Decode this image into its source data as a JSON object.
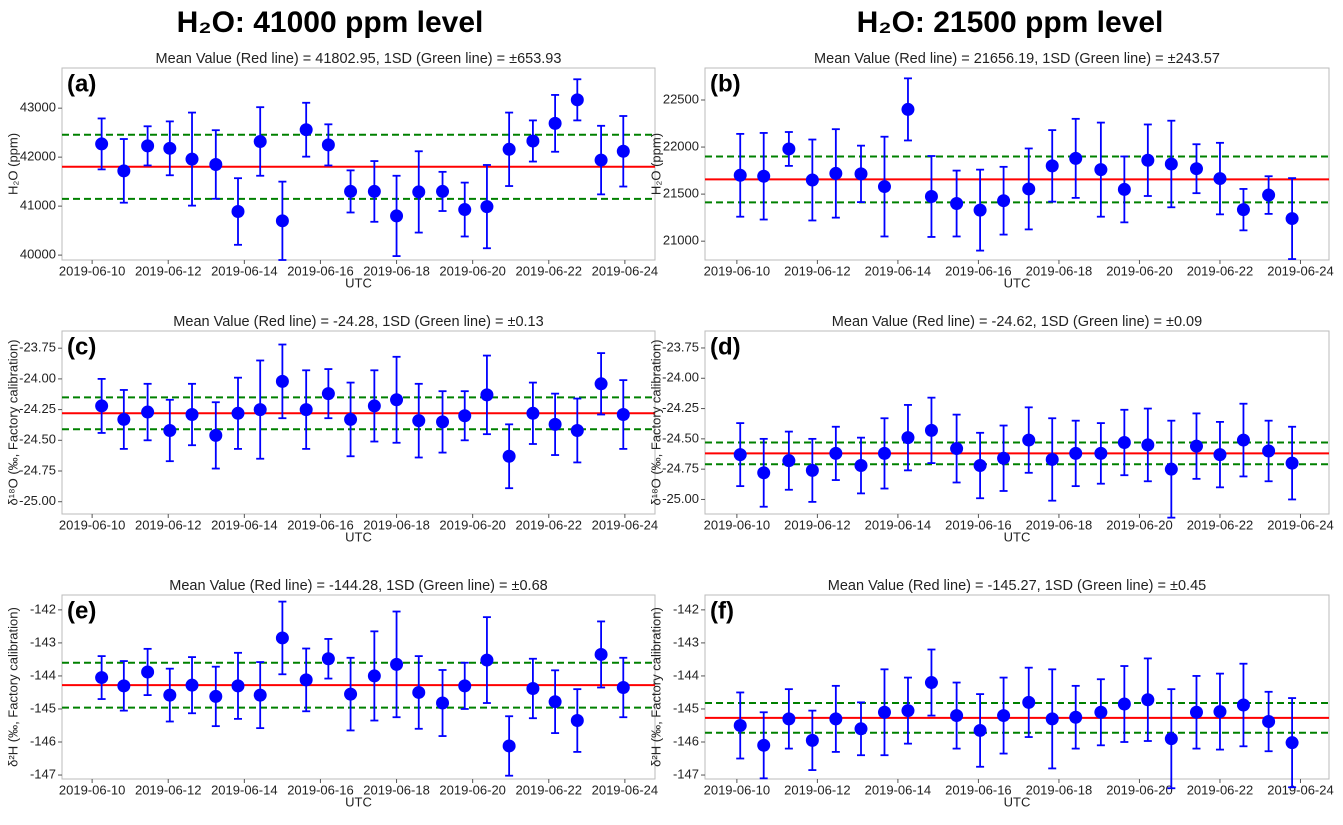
{
  "column_titles": [
    "H₂O: 41000 ppm level",
    "H₂O: 21500 ppm level"
  ],
  "chart_data": [
    {
      "type": "errorbar_scatter",
      "panel_label": "(a)",
      "title": "Mean Value (Red line) = 41802.95, 1SD (Green line) = ±653.93",
      "ylabel": "H₂O (ppm)",
      "xlabel": "UTC",
      "x": [
        "2019-06-10T06:00",
        "2019-06-10T20:00",
        "2019-06-11T11:00",
        "2019-06-12T01:00",
        "2019-06-12T15:00",
        "2019-06-13T06:00",
        "2019-06-13T20:00",
        "2019-06-14T10:00",
        "2019-06-15T00:00",
        "2019-06-15T15:00",
        "2019-06-16T05:00",
        "2019-06-16T19:00",
        "2019-06-17T10:00",
        "2019-06-18T00:00",
        "2019-06-18T14:00",
        "2019-06-19T05:00",
        "2019-06-19T19:00",
        "2019-06-20T09:00",
        "2019-06-20T23:00",
        "2019-06-21T14:00",
        "2019-06-22T04:00",
        "2019-06-22T18:00",
        "2019-06-23T09:00",
        "2019-06-23T23:00"
      ],
      "values": [
        42270,
        41720,
        42230,
        42180,
        41960,
        41850,
        40890,
        42320,
        40700,
        42560,
        42250,
        41300,
        41300,
        40800,
        41290,
        41300,
        40930,
        40990,
        42160,
        42330,
        42690,
        43170,
        41940,
        42120
      ],
      "errors": [
        520,
        650,
        400,
        550,
        950,
        700,
        680,
        700,
        800,
        550,
        420,
        430,
        620,
        820,
        830,
        400,
        550,
        850,
        750,
        420,
        580,
        420,
        700,
        720
      ],
      "mean": 41802.95,
      "sd": 653.93,
      "xlim": [
        "2019-06-09T05:00",
        "2019-06-24T19:00"
      ],
      "xticks": [
        "2019-06-10",
        "2019-06-12",
        "2019-06-14",
        "2019-06-16",
        "2019-06-18",
        "2019-06-20",
        "2019-06-22",
        "2019-06-24"
      ],
      "ylim": [
        39900,
        43820
      ],
      "yticks": [
        40000,
        41000,
        42000,
        43000
      ],
      "color": "#0000ff",
      "mean_color": "#ff0000",
      "sd_color": "#008000"
    },
    {
      "type": "errorbar_scatter",
      "panel_label": "(b)",
      "title": "Mean Value (Red line) = 21656.19, 1SD (Green line) = ±243.57",
      "ylabel": "H₂O (ppm)",
      "xlabel": "UTC",
      "x": [
        "2019-06-10T02:00",
        "2019-06-10T16:00",
        "2019-06-11T07:00",
        "2019-06-11T21:00",
        "2019-06-12T11:00",
        "2019-06-13T02:00",
        "2019-06-13T16:00",
        "2019-06-14T06:00",
        "2019-06-14T20:00",
        "2019-06-15T11:00",
        "2019-06-16T01:00",
        "2019-06-16T15:00",
        "2019-06-17T06:00",
        "2019-06-17T20:00",
        "2019-06-18T10:00",
        "2019-06-19T01:00",
        "2019-06-19T15:00",
        "2019-06-20T05:00",
        "2019-06-20T19:00",
        "2019-06-21T10:00",
        "2019-06-22T00:00",
        "2019-06-22T14:00",
        "2019-06-23T05:00",
        "2019-06-23T19:00"
      ],
      "values": [
        21700,
        21690,
        21980,
        21650,
        21720,
        21715,
        21580,
        22400,
        21475,
        21400,
        21330,
        21430,
        21555,
        21800,
        21880,
        21760,
        21550,
        21860,
        21820,
        21770,
        21665,
        21335,
        21490,
        21240
      ],
      "errors": [
        440,
        460,
        180,
        430,
        470,
        300,
        530,
        330,
        430,
        350,
        430,
        360,
        430,
        380,
        420,
        500,
        350,
        380,
        460,
        260,
        380,
        220,
        200,
        430
      ],
      "mean": 21656.19,
      "sd": 243.57,
      "xlim": [
        "2019-06-09T05:00",
        "2019-06-24T17:00"
      ],
      "xticks": [
        "2019-06-10",
        "2019-06-12",
        "2019-06-14",
        "2019-06-16",
        "2019-06-18",
        "2019-06-20",
        "2019-06-22",
        "2019-06-24"
      ],
      "ylim": [
        20800,
        22840
      ],
      "yticks": [
        21000,
        21500,
        22000,
        22500
      ],
      "color": "#0000ff",
      "mean_color": "#ff0000",
      "sd_color": "#008000"
    },
    {
      "type": "errorbar_scatter",
      "panel_label": "(c)",
      "title": "Mean Value (Red line) = -24.28, 1SD (Green line) = ±0.13",
      "ylabel": "δ¹⁸O (‰, Factory calibration)",
      "xlabel": "UTC",
      "x": [
        "2019-06-10T06:00",
        "2019-06-10T20:00",
        "2019-06-11T11:00",
        "2019-06-12T01:00",
        "2019-06-12T15:00",
        "2019-06-13T06:00",
        "2019-06-13T20:00",
        "2019-06-14T10:00",
        "2019-06-15T00:00",
        "2019-06-15T15:00",
        "2019-06-16T05:00",
        "2019-06-16T19:00",
        "2019-06-17T10:00",
        "2019-06-18T00:00",
        "2019-06-18T14:00",
        "2019-06-19T05:00",
        "2019-06-19T19:00",
        "2019-06-20T09:00",
        "2019-06-20T23:00",
        "2019-06-21T14:00",
        "2019-06-22T04:00",
        "2019-06-22T18:00",
        "2019-06-23T09:00",
        "2019-06-23T23:00"
      ],
      "values": [
        -24.22,
        -24.33,
        -24.27,
        -24.42,
        -24.29,
        -24.46,
        -24.28,
        -24.25,
        -24.02,
        -24.25,
        -24.12,
        -24.33,
        -24.22,
        -24.17,
        -24.34,
        -24.35,
        -24.3,
        -24.13,
        -24.63,
        -24.28,
        -24.37,
        -24.42,
        -24.04,
        -24.29
      ],
      "errors": [
        0.22,
        0.24,
        0.23,
        0.25,
        0.25,
        0.27,
        0.29,
        0.4,
        0.3,
        0.32,
        0.2,
        0.3,
        0.29,
        0.35,
        0.3,
        0.25,
        0.2,
        0.32,
        0.26,
        0.25,
        0.25,
        0.26,
        0.25,
        0.28
      ],
      "mean": -24.28,
      "sd": 0.13,
      "xlim": [
        "2019-06-09T05:00",
        "2019-06-24T19:00"
      ],
      "xticks": [
        "2019-06-10",
        "2019-06-12",
        "2019-06-14",
        "2019-06-16",
        "2019-06-18",
        "2019-06-20",
        "2019-06-22",
        "2019-06-24"
      ],
      "ylim": [
        -25.1,
        -23.61
      ],
      "yticks": [
        {
          "value": -25,
          "label": "-25.00"
        },
        -24.75,
        {
          "value": -24.5,
          "label": "-24.50"
        },
        -24.25,
        {
          "value": -24,
          "label": "-24.00"
        },
        -23.75
      ],
      "color": "#0000ff",
      "mean_color": "#ff0000",
      "sd_color": "#008000"
    },
    {
      "type": "errorbar_scatter",
      "panel_label": "(d)",
      "title": "Mean Value (Red line) = -24.62, 1SD (Green line) = ±0.09",
      "ylabel": "δ¹⁸O (‰, Factory calibration)",
      "xlabel": "UTC",
      "x": [
        "2019-06-10T02:00",
        "2019-06-10T16:00",
        "2019-06-11T07:00",
        "2019-06-11T21:00",
        "2019-06-12T11:00",
        "2019-06-13T02:00",
        "2019-06-13T16:00",
        "2019-06-14T06:00",
        "2019-06-14T20:00",
        "2019-06-15T11:00",
        "2019-06-16T01:00",
        "2019-06-16T15:00",
        "2019-06-17T06:00",
        "2019-06-17T20:00",
        "2019-06-18T10:00",
        "2019-06-19T01:00",
        "2019-06-19T15:00",
        "2019-06-20T05:00",
        "2019-06-20T19:00",
        "2019-06-21T10:00",
        "2019-06-22T00:00",
        "2019-06-22T14:00",
        "2019-06-23T05:00",
        "2019-06-23T19:00"
      ],
      "values": [
        -24.63,
        -24.78,
        -24.68,
        -24.76,
        -24.62,
        -24.72,
        -24.62,
        -24.49,
        -24.43,
        -24.58,
        -24.72,
        -24.66,
        -24.51,
        -24.67,
        -24.62,
        -24.62,
        -24.53,
        -24.55,
        -24.75,
        -24.56,
        -24.63,
        -24.51,
        -24.6,
        -24.7
      ],
      "errors": [
        0.26,
        0.28,
        0.24,
        0.26,
        0.22,
        0.23,
        0.29,
        0.27,
        0.27,
        0.28,
        0.27,
        0.27,
        0.27,
        0.34,
        0.27,
        0.25,
        0.27,
        0.3,
        0.4,
        0.27,
        0.27,
        0.3,
        0.25,
        0.3
      ],
      "mean": -24.62,
      "sd": 0.09,
      "xlim": [
        "2019-06-09T05:00",
        "2019-06-24T17:00"
      ],
      "xticks": [
        "2019-06-10",
        "2019-06-12",
        "2019-06-14",
        "2019-06-16",
        "2019-06-18",
        "2019-06-20",
        "2019-06-22",
        "2019-06-24"
      ],
      "ylim": [
        -25.12,
        -23.61
      ],
      "yticks": [
        {
          "value": -25,
          "label": "-25.00"
        },
        -24.75,
        {
          "value": -24.5,
          "label": "-24.50"
        },
        -24.25,
        {
          "value": -24,
          "label": "-24.00"
        },
        -23.75
      ],
      "color": "#0000ff",
      "mean_color": "#ff0000",
      "sd_color": "#008000"
    },
    {
      "type": "errorbar_scatter",
      "panel_label": "(e)",
      "title": "Mean Value (Red line) = -144.28, 1SD (Green line) = ±0.68",
      "ylabel": "δ²H (‰, Factory calibration)",
      "xlabel": "UTC",
      "x": [
        "2019-06-10T06:00",
        "2019-06-10T20:00",
        "2019-06-11T11:00",
        "2019-06-12T01:00",
        "2019-06-12T15:00",
        "2019-06-13T06:00",
        "2019-06-13T20:00",
        "2019-06-14T10:00",
        "2019-06-15T00:00",
        "2019-06-15T15:00",
        "2019-06-16T05:00",
        "2019-06-16T19:00",
        "2019-06-17T10:00",
        "2019-06-18T00:00",
        "2019-06-18T14:00",
        "2019-06-19T05:00",
        "2019-06-19T19:00",
        "2019-06-20T09:00",
        "2019-06-20T23:00",
        "2019-06-21T14:00",
        "2019-06-22T04:00",
        "2019-06-22T18:00",
        "2019-06-23T09:00",
        "2019-06-23T23:00"
      ],
      "values": [
        -144.05,
        -144.3,
        -143.88,
        -144.58,
        -144.28,
        -144.62,
        -144.3,
        -144.58,
        -142.85,
        -144.12,
        -143.48,
        -144.55,
        -144,
        -143.65,
        -144.5,
        -144.82,
        -144.3,
        -143.52,
        -146.12,
        -144.38,
        -144.78,
        -145.35,
        -143.35,
        -144.35
      ],
      "errors": [
        0.65,
        0.75,
        0.7,
        0.8,
        0.85,
        0.9,
        1,
        1,
        1.1,
        0.95,
        0.6,
        1.1,
        1.35,
        1.6,
        1.1,
        1,
        0.7,
        1.3,
        0.9,
        0.9,
        0.95,
        0.95,
        1,
        0.9
      ],
      "mean": -144.28,
      "sd": 0.68,
      "xlim": [
        "2019-06-09T05:00",
        "2019-06-24T19:00"
      ],
      "xticks": [
        "2019-06-10",
        "2019-06-12",
        "2019-06-14",
        "2019-06-16",
        "2019-06-18",
        "2019-06-20",
        "2019-06-22",
        "2019-06-24"
      ],
      "ylim": [
        -147.12,
        -141.55
      ],
      "yticks": [
        -147,
        -146,
        -145,
        -144,
        -143,
        -142
      ],
      "color": "#0000ff",
      "mean_color": "#ff0000",
      "sd_color": "#008000"
    },
    {
      "type": "errorbar_scatter",
      "panel_label": "(f)",
      "title": "Mean Value (Red line) = -145.27, 1SD (Green line) = ±0.45",
      "ylabel": "δ²H (‰, Factory calibration)",
      "xlabel": "UTC",
      "x": [
        "2019-06-10T02:00",
        "2019-06-10T16:00",
        "2019-06-11T07:00",
        "2019-06-11T21:00",
        "2019-06-12T11:00",
        "2019-06-13T02:00",
        "2019-06-13T16:00",
        "2019-06-14T06:00",
        "2019-06-14T20:00",
        "2019-06-15T11:00",
        "2019-06-16T01:00",
        "2019-06-16T15:00",
        "2019-06-17T06:00",
        "2019-06-17T20:00",
        "2019-06-18T10:00",
        "2019-06-19T01:00",
        "2019-06-19T15:00",
        "2019-06-20T05:00",
        "2019-06-20T19:00",
        "2019-06-21T10:00",
        "2019-06-22T00:00",
        "2019-06-22T14:00",
        "2019-06-23T05:00",
        "2019-06-23T19:00"
      ],
      "values": [
        -145.5,
        -146.1,
        -145.3,
        -145.95,
        -145.3,
        -145.6,
        -145.1,
        -145.05,
        -144.2,
        -145.2,
        -145.65,
        -145.2,
        -144.8,
        -145.3,
        -145.25,
        -145.1,
        -144.85,
        -144.72,
        -145.9,
        -145.1,
        -145.08,
        -144.88,
        -145.38,
        -146.02
      ],
      "errors": [
        1,
        1,
        0.9,
        0.9,
        1,
        0.8,
        1.3,
        1,
        1,
        1,
        1.1,
        1.15,
        1.05,
        1.5,
        0.95,
        1,
        1.15,
        1.25,
        1.5,
        1.1,
        1.15,
        1.25,
        0.9,
        1.35
      ],
      "mean": -145.27,
      "sd": 0.45,
      "xlim": [
        "2019-06-09T05:00",
        "2019-06-24T17:00"
      ],
      "xticks": [
        "2019-06-10",
        "2019-06-12",
        "2019-06-14",
        "2019-06-16",
        "2019-06-18",
        "2019-06-20",
        "2019-06-22",
        "2019-06-24"
      ],
      "ylim": [
        -147.12,
        -141.55
      ],
      "yticks": [
        -147,
        -146,
        -145,
        -144,
        -143,
        -142
      ],
      "color": "#0000ff",
      "mean_color": "#ff0000",
      "sd_color": "#008000"
    }
  ]
}
